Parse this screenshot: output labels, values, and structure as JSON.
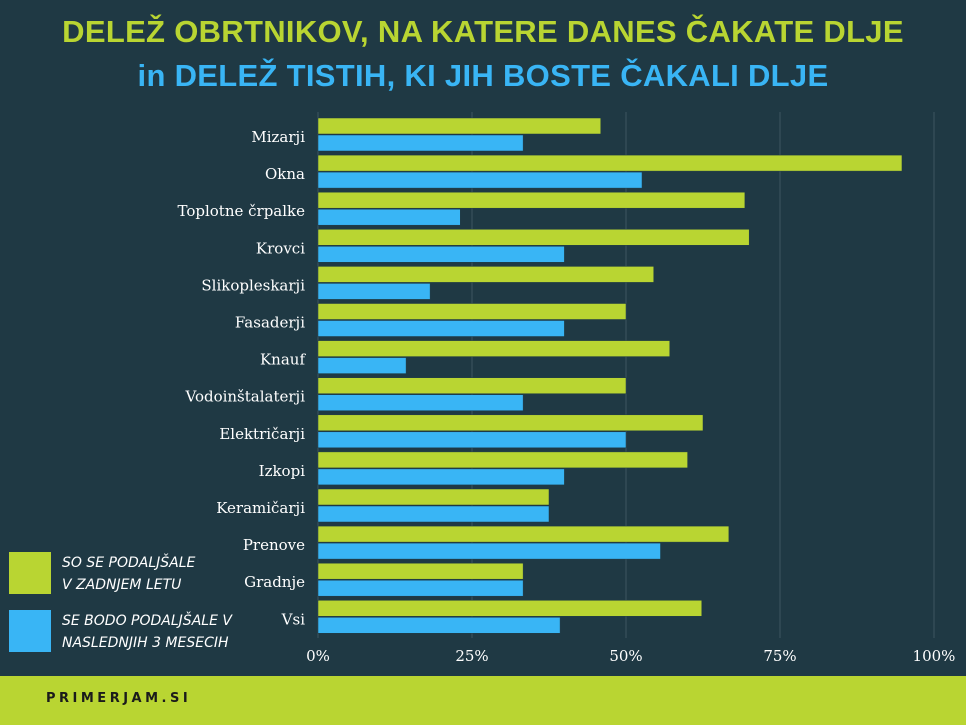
{
  "chart_data": {
    "type": "bar",
    "orientation": "horizontal",
    "title": "DELEŽ OBRTNIKOV, NA KATERE DANES ČAKATE DLJE",
    "subtitle": "in DELEŽ TISTIH, KI JIH BOSTE ČAKALI DLJE",
    "categories": [
      "Mizarji",
      "Okna",
      "Toplotne črpalke",
      "Krovci",
      "Slikopleskarji",
      "Fasaderji",
      "Knauf",
      "Vodoinštalaterji",
      "Električarji",
      "Izkopi",
      "Keramičarji",
      "Prenove",
      "Gradnje",
      "Vsi"
    ],
    "series": [
      {
        "name": "SO SE PODALJŠALE V ZADNJEM LETU",
        "name_lines": [
          "SO SE PODALJŠALE",
          "V ZADNJEM LETU"
        ],
        "color": "#b9d532",
        "values": [
          45.9,
          94.8,
          69.3,
          70.0,
          54.5,
          50.0,
          57.1,
          50.0,
          62.5,
          60.0,
          37.5,
          66.7,
          33.3,
          62.3
        ]
      },
      {
        "name": "SE BODO PODALJŠALE V NASLEDNJIH 3 MESECIH",
        "name_lines": [
          "SE BODO PODALJŠALE V",
          "NASLEDNJIH 3 MESECIH"
        ],
        "color": "#39b5f5",
        "values": [
          33.3,
          52.6,
          23.1,
          40.0,
          18.2,
          40.0,
          14.3,
          33.3,
          50.0,
          40.0,
          37.5,
          55.6,
          33.3,
          39.3
        ]
      }
    ],
    "xlim": [
      0,
      100
    ],
    "xticks": [
      "0%",
      "25%",
      "50%",
      "75%",
      "100%"
    ],
    "grid": true,
    "legend": "bottom-left"
  },
  "footer": {
    "brand": "PRIMERJAM.SI"
  }
}
